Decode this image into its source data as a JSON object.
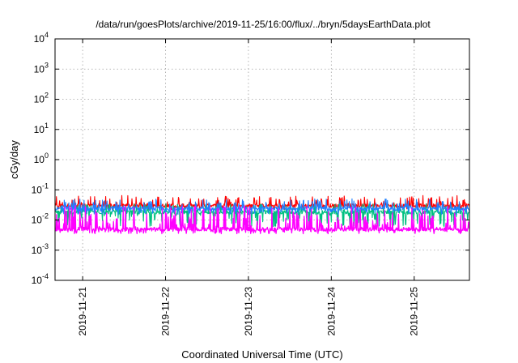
{
  "chart_data": {
    "type": "line",
    "title": "/data/run/goesPlots/archive/2019-11-25/16:00/flux/../bryn/5daysEarthData.plot",
    "xlabel": "Coordinated Universal Time (UTC)",
    "ylabel": "cGy/day",
    "y_scale": "log",
    "ylim": [
      0.0001,
      10000
    ],
    "xlim": [
      "2019-11-20T16:00",
      "2019-11-25T16:00"
    ],
    "y_ticks": [
      {
        "value": 0.0001,
        "mantissa": "10",
        "exp": "-4"
      },
      {
        "value": 0.001,
        "mantissa": "10",
        "exp": "-3"
      },
      {
        "value": 0.01,
        "mantissa": "10",
        "exp": "-2"
      },
      {
        "value": 0.1,
        "mantissa": "10",
        "exp": "-1"
      },
      {
        "value": 1,
        "mantissa": "10",
        "exp": "0"
      },
      {
        "value": 10,
        "mantissa": "10",
        "exp": "1"
      },
      {
        "value": 100,
        "mantissa": "10",
        "exp": "2"
      },
      {
        "value": 1000,
        "mantissa": "10",
        "exp": "3"
      },
      {
        "value": 10000,
        "mantissa": "10",
        "exp": "4"
      }
    ],
    "x_ticks": [
      {
        "value": "2019-11-21T00:00",
        "label": "2019-11-21"
      },
      {
        "value": "2019-11-22T00:00",
        "label": "2019-11-22"
      },
      {
        "value": "2019-11-23T00:00",
        "label": "2019-11-23"
      },
      {
        "value": "2019-11-24T00:00",
        "label": "2019-11-24"
      },
      {
        "value": "2019-11-25T00:00",
        "label": "2019-11-25"
      }
    ],
    "grid": true,
    "legend": "none",
    "series": [
      {
        "color": "#ff0000",
        "baseline": 0.03,
        "spike_max": 0.065,
        "spike_min": 0.022
      },
      {
        "color": "#00c080",
        "baseline": 0.018,
        "spike_max": 0.035,
        "spike_min": 0.006
      },
      {
        "color": "#2080ff",
        "baseline": 0.024,
        "spike_max": 0.05,
        "spike_min": 0.015
      },
      {
        "color": "#ff00ff",
        "baseline": 0.005,
        "spike_max": 0.03,
        "spike_min": 0.0035
      }
    ]
  }
}
